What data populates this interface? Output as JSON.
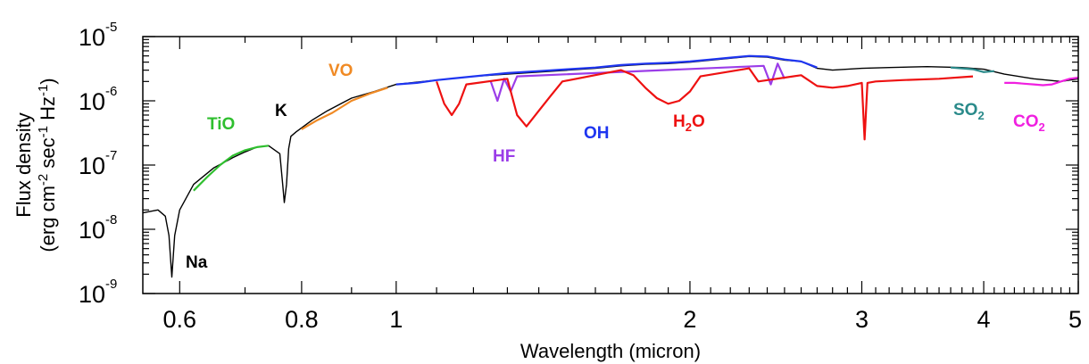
{
  "chart_data": {
    "type": "line",
    "xlabel": "Wavelength (micron)",
    "ylabel_line1": "Flux density",
    "ylabel_line2_parts": [
      "(erg cm",
      "-2",
      " sec",
      "-1",
      " Hz",
      "-1",
      ")"
    ],
    "xscale": "log",
    "yscale": "log",
    "xlim": [
      0.55,
      5.0
    ],
    "ylim": [
      1e-09,
      1e-05
    ],
    "x_ticks": [
      {
        "value": 0.6,
        "label": "0.6"
      },
      {
        "value": 0.8,
        "label": "0.8"
      },
      {
        "value": 1.0,
        "label": "1"
      },
      {
        "value": 2.0,
        "label": "2"
      },
      {
        "value": 3.0,
        "label": "3"
      },
      {
        "value": 4.0,
        "label": "4"
      },
      {
        "value": 5.0,
        "label": "5"
      }
    ],
    "y_ticks": [
      {
        "value": 1e-09,
        "base": "10",
        "exp": "-9"
      },
      {
        "value": 1e-08,
        "base": "10",
        "exp": "-8"
      },
      {
        "value": 1e-07,
        "base": "10",
        "exp": "-7"
      },
      {
        "value": 1e-06,
        "base": "10",
        "exp": "-6"
      },
      {
        "value": 1e-05,
        "base": "10",
        "exp": "-5"
      }
    ],
    "series": [
      {
        "color": "#000000",
        "x": [
          0.55,
          0.57,
          0.58,
          0.585,
          0.589,
          0.593,
          0.6,
          0.62,
          0.65,
          0.68,
          0.7,
          0.72,
          0.74,
          0.76,
          0.765,
          0.768,
          0.772,
          0.776,
          0.78,
          0.79,
          0.8,
          0.82,
          0.85,
          0.9,
          0.95,
          1.0,
          1.05,
          1.1,
          1.2,
          1.3,
          1.4,
          1.5,
          1.6,
          1.7,
          1.8,
          1.9,
          2.0,
          2.1,
          2.2,
          2.3,
          2.4,
          2.5,
          2.6,
          2.7,
          2.8,
          3.0,
          3.2,
          3.5,
          3.8,
          4.0,
          4.2,
          4.5,
          4.8,
          5.0
        ],
        "y": [
          1.8e-08,
          2e-08,
          1.6e-08,
          8e-09,
          1.8e-09,
          8e-09,
          2e-08,
          5e-08,
          9e-08,
          1.3e-07,
          1.6e-07,
          1.9e-07,
          2e-07,
          1.5e-07,
          5e-08,
          2.6e-08,
          5e-08,
          1.8e-07,
          2.8e-07,
          3.3e-07,
          3.8e-07,
          5e-07,
          7e-07,
          1.1e-06,
          1.4e-06,
          1.8e-06,
          1.95e-06,
          2.1e-06,
          2.4e-06,
          2.6e-06,
          2.8e-06,
          3e-06,
          3.2e-06,
          3.5e-06,
          3.7e-06,
          3.8e-06,
          4e-06,
          4.3e-06,
          4.6e-06,
          4.9e-06,
          4.8e-06,
          4.3e-06,
          4.1e-06,
          3.2e-06,
          3e-06,
          3.2e-06,
          3.3e-06,
          3.4e-06,
          3.3e-06,
          3.1e-06,
          2.6e-06,
          2.2e-06,
          2e-06,
          2.2e-06
        ]
      },
      {
        "color": "#2fbf2f",
        "x": [
          0.62,
          0.64,
          0.66,
          0.68,
          0.7,
          0.72,
          0.74
        ],
        "y": [
          4e-08,
          6.5e-08,
          1e-07,
          1.4e-07,
          1.7e-07,
          1.9e-07,
          2e-07
        ]
      },
      {
        "color": "#f08a24",
        "x": [
          0.8,
          0.83,
          0.86,
          0.9,
          0.94,
          0.98
        ],
        "y": [
          3.6e-07,
          5e-07,
          6.5e-07,
          1e-06,
          1.3e-06,
          1.6e-06
        ]
      },
      {
        "color": "#9b3de8",
        "x": [
          1.25,
          1.27,
          1.29,
          1.31,
          1.33,
          2.38,
          2.42,
          2.46,
          2.5
        ],
        "y": [
          2e-06,
          1e-06,
          2.2e-06,
          1.4e-06,
          2.4e-06,
          3.5e-06,
          1.8e-06,
          3.8e-06,
          2.2e-06
        ]
      },
      {
        "color": "#ee1111",
        "x": [
          1.1,
          1.12,
          1.14,
          1.16,
          1.18,
          1.3,
          1.33,
          1.36,
          1.4,
          1.44,
          1.48,
          1.7,
          1.75,
          1.8,
          1.85,
          1.9,
          1.95,
          2.0,
          2.05,
          2.3,
          2.35,
          2.6,
          2.7,
          2.8,
          2.9,
          3.0,
          3.02,
          3.04,
          3.1,
          3.3,
          3.6,
          3.9
        ],
        "y": [
          2e-06,
          9e-07,
          6e-07,
          9e-07,
          1.8e-06,
          2.2e-06,
          6e-07,
          4e-07,
          7e-07,
          1.2e-06,
          2e-06,
          3e-06,
          2.5e-06,
          1.6e-06,
          1.1e-06,
          9e-07,
          1e-06,
          1.4e-06,
          2.4e-06,
          3.2e-06,
          2e-06,
          2.5e-06,
          1.7e-06,
          1.6e-06,
          1.7e-06,
          1.9e-06,
          2.5e-07,
          1.9e-06,
          2e-06,
          2.1e-06,
          2.2e-06,
          2.4e-06
        ]
      },
      {
        "color": "#1e35f0",
        "x": [
          1.0,
          1.05,
          1.1,
          1.2,
          1.3,
          1.4,
          1.5,
          1.6,
          1.7,
          1.8,
          1.9,
          2.0,
          2.1,
          2.2,
          2.3,
          2.4,
          2.5,
          2.6,
          2.7
        ],
        "y": [
          1.8e-06,
          1.9e-06,
          2.1e-06,
          2.4e-06,
          2.7e-06,
          2.9e-06,
          3.1e-06,
          3.3e-06,
          3.6e-06,
          3.8e-06,
          3.9e-06,
          4.1e-06,
          4.4e-06,
          4.7e-06,
          5e-06,
          4.9e-06,
          4.4e-06,
          4.1e-06,
          3.3e-06
        ]
      },
      {
        "color": "#2a8a8a",
        "x": [
          3.7,
          3.8,
          3.9,
          4.0,
          4.1
        ],
        "y": [
          3.3e-06,
          3.2e-06,
          3.1e-06,
          2.8e-06,
          2.9e-06
        ]
      },
      {
        "color": "#f020e0",
        "x": [
          4.2,
          4.3,
          4.4,
          4.5,
          4.6,
          4.7,
          4.8,
          4.9,
          5.0
        ],
        "y": [
          1.9e-06,
          1.9e-06,
          1.85e-06,
          1.8e-06,
          1.75e-06,
          1.8e-06,
          2e-06,
          2.2e-06,
          2.3e-06
        ]
      }
    ],
    "annotations": [
      {
        "id": "na",
        "parts": [
          {
            "t": "Na"
          }
        ],
        "color": "#000000"
      },
      {
        "id": "tio",
        "parts": [
          {
            "t": "TiO"
          }
        ],
        "color": "#2fbf2f"
      },
      {
        "id": "k",
        "parts": [
          {
            "t": "K"
          }
        ],
        "color": "#000000"
      },
      {
        "id": "vo",
        "parts": [
          {
            "t": "VO"
          }
        ],
        "color": "#f08a24"
      },
      {
        "id": "hf",
        "parts": [
          {
            "t": "HF"
          }
        ],
        "color": "#9b3de8"
      },
      {
        "id": "oh",
        "parts": [
          {
            "t": "OH"
          }
        ],
        "color": "#1e35f0"
      },
      {
        "id": "h2o",
        "parts": [
          {
            "t": "H"
          },
          {
            "t": "2",
            "sub": true
          },
          {
            "t": "O"
          }
        ],
        "color": "#ee1111"
      },
      {
        "id": "so2",
        "parts": [
          {
            "t": "SO"
          },
          {
            "t": "2",
            "sub": true
          }
        ],
        "color": "#2a8a8a"
      },
      {
        "id": "co2",
        "parts": [
          {
            "t": "CO"
          },
          {
            "t": "2",
            "sub": true
          }
        ],
        "color": "#f020e0"
      }
    ]
  }
}
